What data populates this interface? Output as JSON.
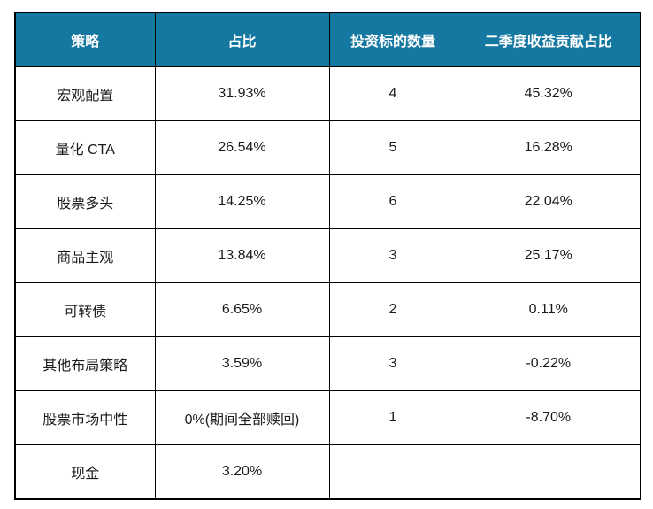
{
  "colors": {
    "header_bg": "#1578A1",
    "header_text": "#FFFFFF",
    "border": "#000000",
    "cell_text": "#1A1A1A"
  },
  "table": {
    "headers": [
      "策略",
      "占比",
      "投资标的数量",
      "二季度收益贡献占比"
    ],
    "rows": [
      [
        "宏观配置",
        "31.93%",
        "4",
        "45.32%"
      ],
      [
        "量化 CTA",
        "26.54%",
        "5",
        "16.28%"
      ],
      [
        "股票多头",
        "14.25%",
        "6",
        "22.04%"
      ],
      [
        "商品主观",
        "13.84%",
        "3",
        "25.17%"
      ],
      [
        "可转债",
        "6.65%",
        "2",
        "0.11%"
      ],
      [
        "其他布局策略",
        "3.59%",
        "3",
        "-0.22%"
      ],
      [
        "股票市场中性",
        "0%(期间全部赎回)",
        "1",
        "-8.70%"
      ],
      [
        "现金",
        "3.20%",
        "",
        ""
      ]
    ]
  }
}
